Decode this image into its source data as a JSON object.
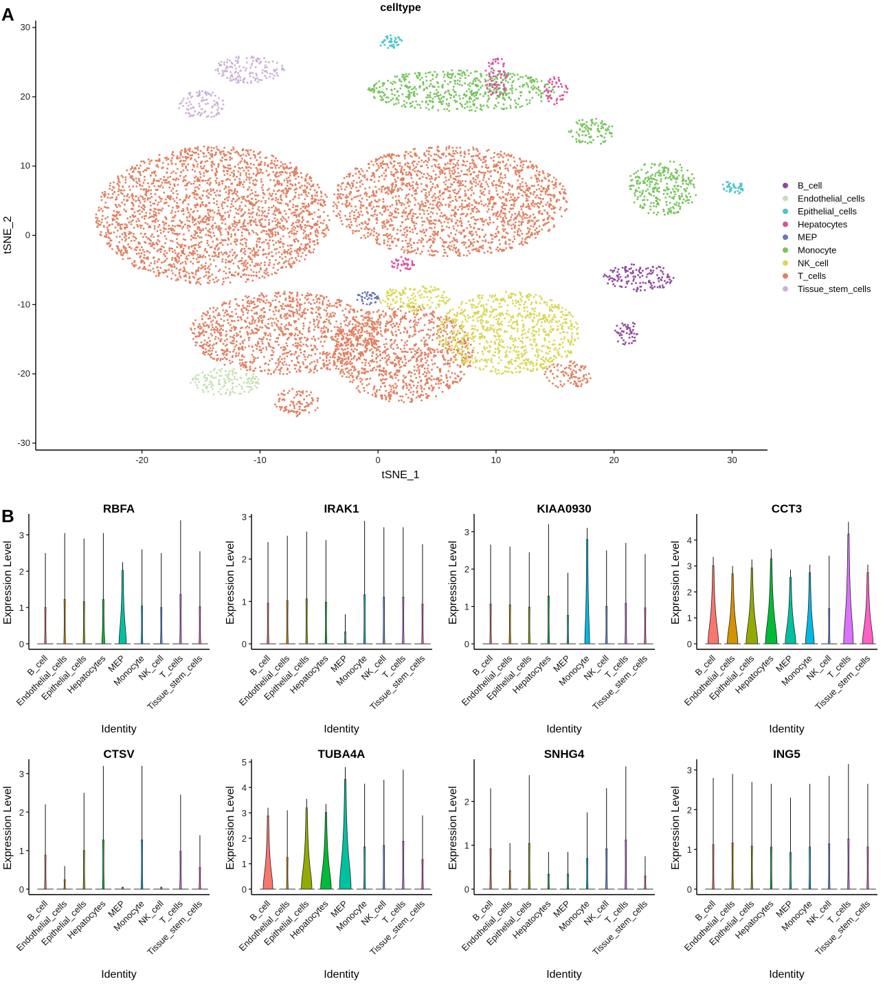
{
  "panels": {
    "a_label": "A",
    "b_label": "B"
  },
  "chart_data": [
    {
      "type": "scatter",
      "id": "tsne",
      "title": "celltype",
      "xlabel": "tSNE_1",
      "ylabel": "tSNE_2",
      "xlim": [
        -29,
        33
      ],
      "ylim": [
        -31,
        31
      ],
      "xticks": [
        -20,
        -10,
        0,
        10,
        20,
        30
      ],
      "yticks": [
        -30,
        -20,
        -10,
        0,
        10,
        20,
        30
      ],
      "legend_position": "right",
      "legend": [
        {
          "name": "B_cell",
          "color": "#9048A0"
        },
        {
          "name": "Endothelial_cells",
          "color": "#C5DEB2"
        },
        {
          "name": "Epithelial_cells",
          "color": "#4CC5C9"
        },
        {
          "name": "Hepatocytes",
          "color": "#D7539B"
        },
        {
          "name": "MEP",
          "color": "#6A78B5"
        },
        {
          "name": "Monocyte",
          "color": "#76C45B"
        },
        {
          "name": "NK_cell",
          "color": "#D8D856"
        },
        {
          "name": "T_cells",
          "color": "#E07F60"
        },
        {
          "name": "Tissue_stem_cells",
          "color": "#CBB1D5"
        }
      ],
      "clusters": [
        {
          "celltype": "T_cells",
          "cx": -14,
          "cy": 3,
          "rx": 10,
          "ry": 10
        },
        {
          "celltype": "T_cells",
          "cx": 6,
          "cy": 5,
          "rx": 10,
          "ry": 8
        },
        {
          "celltype": "T_cells",
          "cx": -8,
          "cy": -14,
          "rx": 8,
          "ry": 6
        },
        {
          "celltype": "T_cells",
          "cx": 2,
          "cy": -17,
          "rx": 6,
          "ry": 7
        },
        {
          "celltype": "T_cells",
          "cx": 16,
          "cy": -20,
          "rx": 2,
          "ry": 2
        },
        {
          "celltype": "T_cells",
          "cx": -7,
          "cy": -24,
          "rx": 2,
          "ry": 2
        },
        {
          "celltype": "NK_cell",
          "cx": 11,
          "cy": -14,
          "rx": 6,
          "ry": 6
        },
        {
          "celltype": "NK_cell",
          "cx": 3,
          "cy": -9,
          "rx": 3,
          "ry": 2
        },
        {
          "celltype": "B_cell",
          "cx": 22,
          "cy": -6,
          "rx": 3,
          "ry": 2
        },
        {
          "celltype": "B_cell",
          "cx": 21,
          "cy": -14,
          "rx": 1,
          "ry": 2
        },
        {
          "celltype": "Monocyte",
          "cx": 7,
          "cy": 21,
          "rx": 8,
          "ry": 3
        },
        {
          "celltype": "Monocyte",
          "cx": 18,
          "cy": 15,
          "rx": 2,
          "ry": 2
        },
        {
          "celltype": "Monocyte",
          "cx": 24,
          "cy": 7,
          "rx": 3,
          "ry": 4
        },
        {
          "celltype": "Tissue_stem_cells",
          "cx": -11,
          "cy": 24,
          "rx": 3,
          "ry": 2
        },
        {
          "celltype": "Tissue_stem_cells",
          "cx": -15,
          "cy": 19,
          "rx": 2,
          "ry": 2
        },
        {
          "celltype": "Endothelial_cells",
          "cx": -13,
          "cy": -21,
          "rx": 3,
          "ry": 2
        },
        {
          "celltype": "Hepatocytes",
          "cx": 15,
          "cy": 21,
          "rx": 1,
          "ry": 2
        },
        {
          "celltype": "Hepatocytes",
          "cx": 10,
          "cy": 23,
          "rx": 1,
          "ry": 3
        },
        {
          "celltype": "Hepatocytes",
          "cx": 2,
          "cy": -4,
          "rx": 1,
          "ry": 1
        },
        {
          "celltype": "Epithelial_cells",
          "cx": 1,
          "cy": 28,
          "rx": 1,
          "ry": 1
        },
        {
          "celltype": "Epithelial_cells",
          "cx": 30,
          "cy": 7,
          "rx": 1,
          "ry": 1
        },
        {
          "celltype": "MEP",
          "cx": -1,
          "cy": -9,
          "rx": 1,
          "ry": 1
        }
      ]
    },
    {
      "type": "violin",
      "id": "violins",
      "ylabel": "Expression Level",
      "xlabel": "Identity",
      "categories": [
        "B_cell",
        "Endothelial_cells",
        "Epithelial_cells",
        "Hepatocytes",
        "MEP",
        "Monocyte",
        "NK_cell",
        "T_cells",
        "Tissue_stem_cells"
      ],
      "colors": [
        "#F8766D",
        "#D39200",
        "#93AA00",
        "#00BA38",
        "#00C19F",
        "#00B9E3",
        "#619CFF",
        "#DB72FB",
        "#FF61C3"
      ],
      "genes": [
        {
          "name": "RBFA",
          "ymax": 3.5,
          "yticks": [
            0,
            1,
            2,
            3
          ],
          "max": [
            2.5,
            3.05,
            2.9,
            3.05,
            2.25,
            2.6,
            2.5,
            3.4,
            2.55
          ],
          "width": [
            0.03,
            0.02,
            0.02,
            0.15,
            0.38,
            0.03,
            0.02,
            0.03,
            0.02
          ]
        },
        {
          "name": "IRAK1",
          "ymax": 3.0,
          "yticks": [
            0,
            1,
            2,
            3
          ],
          "max": [
            2.4,
            2.55,
            2.65,
            2.45,
            0.7,
            2.9,
            2.75,
            2.75,
            2.35
          ],
          "width": [
            0.02,
            0.02,
            0.02,
            0.03,
            0.01,
            0.02,
            0.02,
            0.02,
            0.02
          ]
        },
        {
          "name": "KIAA0930",
          "ymax": 3.4,
          "yticks": [
            0,
            1,
            2,
            3
          ],
          "max": [
            2.65,
            2.6,
            2.45,
            3.2,
            1.9,
            3.1,
            2.5,
            2.7,
            2.4
          ],
          "width": [
            0.02,
            0.02,
            0.02,
            0.02,
            0.01,
            0.25,
            0.02,
            0.02,
            0.02
          ]
        },
        {
          "name": "CCT3",
          "ymax": 4.9,
          "yticks": [
            0,
            1,
            2,
            3,
            4
          ],
          "max": [
            3.35,
            3.0,
            3.25,
            3.65,
            2.85,
            3.05,
            3.4,
            4.7,
            3.05
          ],
          "width": [
            0.55,
            0.55,
            0.6,
            0.6,
            0.55,
            0.45,
            0.02,
            0.5,
            0.55
          ]
        },
        {
          "name": "CTSV",
          "ymax": 3.3,
          "yticks": [
            0,
            1,
            2,
            3
          ],
          "max": [
            2.2,
            0.6,
            2.5,
            3.2,
            0.0,
            3.2,
            0.0,
            2.45,
            1.4
          ],
          "width": [
            0.03,
            0.01,
            0.03,
            0.02,
            0.0,
            0.03,
            0.0,
            0.03,
            0.02
          ]
        },
        {
          "name": "TUBA4A",
          "ymax": 5.0,
          "yticks": [
            0,
            1,
            2,
            3,
            4,
            5
          ],
          "max": [
            3.2,
            3.1,
            3.55,
            3.35,
            4.8,
            4.15,
            4.3,
            4.7,
            2.9
          ],
          "width": [
            0.5,
            0.03,
            0.55,
            0.55,
            0.6,
            0.04,
            0.04,
            0.04,
            0.04
          ]
        },
        {
          "name": "SNHG4",
          "ymax": 2.9,
          "yticks": [
            0,
            1,
            2
          ],
          "max": [
            2.3,
            1.05,
            2.6,
            0.85,
            0.85,
            1.75,
            2.3,
            2.8,
            0.75
          ],
          "width": [
            0.02,
            0.01,
            0.02,
            0.01,
            0.01,
            0.02,
            0.02,
            0.02,
            0.01
          ]
        },
        {
          "name": "ING5",
          "ymax": 3.2,
          "yticks": [
            0,
            1,
            2,
            3
          ],
          "max": [
            2.8,
            2.9,
            2.7,
            2.65,
            2.3,
            2.65,
            2.85,
            3.15,
            2.65
          ],
          "width": [
            0.02,
            0.02,
            0.02,
            0.02,
            0.02,
            0.02,
            0.02,
            0.02,
            0.02
          ]
        }
      ]
    }
  ]
}
